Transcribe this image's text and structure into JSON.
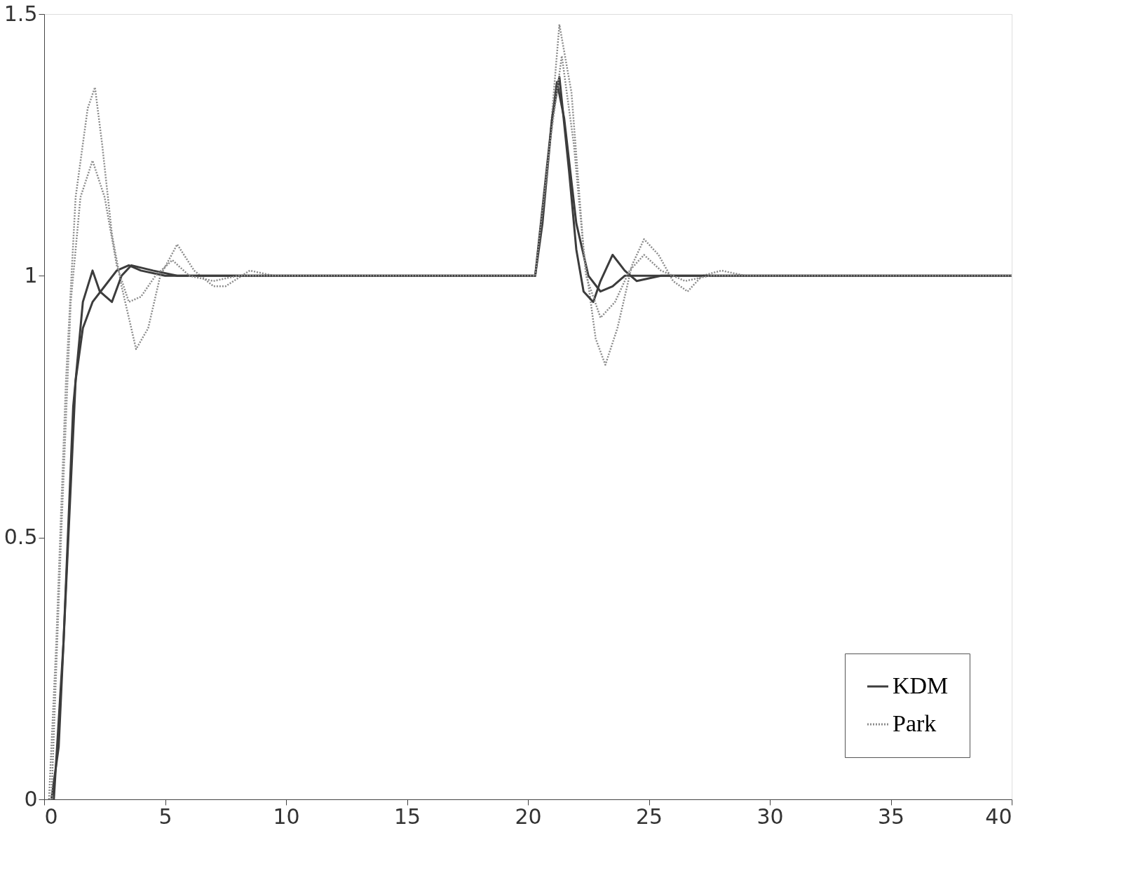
{
  "chart_data": {
    "type": "line",
    "xlim": [
      0,
      40
    ],
    "ylim": [
      0,
      1.5
    ],
    "xticks": [
      0,
      5,
      10,
      15,
      20,
      25,
      30,
      35,
      40
    ],
    "yticks": [
      0,
      0.5,
      1,
      1.5
    ],
    "grid": false,
    "legend": "bottom right",
    "marker": "none",
    "series": [
      {
        "name": "KDM",
        "color": "#3c3c3c",
        "line_style": "solid",
        "x": [
          0.3,
          0.6,
          1,
          1.3,
          1.6,
          2,
          2.5,
          3,
          3.5,
          4,
          5,
          20.3,
          20.6,
          21,
          21.2,
          21.5,
          22,
          22.5,
          23,
          23.5,
          24,
          25,
          40
        ],
        "values": [
          0,
          0.1,
          0.5,
          0.8,
          0.9,
          0.95,
          0.98,
          1.01,
          1.02,
          1.01,
          1.0,
          1.0,
          1.1,
          1.3,
          1.37,
          1.3,
          1.1,
          1.0,
          0.97,
          0.98,
          1.0,
          1.0,
          1.0
        ]
      },
      {
        "name": "Park",
        "color": "#8c8c8c",
        "line_style": "dotted",
        "x": [
          0.2,
          0.5,
          0.9,
          1.3,
          1.8,
          2.1,
          2.4,
          2.8,
          3.2,
          3.8,
          4.3,
          4.8,
          5.5,
          6.2,
          7,
          7.5,
          8.5,
          9.5,
          20.3,
          20.8,
          21.3,
          21.8,
          22.3,
          22.8,
          23.2,
          23.7,
          24.3,
          24.8,
          25.4,
          26,
          26.6,
          27.2,
          28,
          29,
          40
        ],
        "values": [
          0,
          0.3,
          0.8,
          1.15,
          1.32,
          1.36,
          1.25,
          1.08,
          0.98,
          0.86,
          0.9,
          1.0,
          1.06,
          1.01,
          0.98,
          0.98,
          1.01,
          1.0,
          1.0,
          1.2,
          1.48,
          1.35,
          1.05,
          0.88,
          0.83,
          0.9,
          1.02,
          1.07,
          1.04,
          0.99,
          0.97,
          1.0,
          1.01,
          1.0,
          1.0
        ]
      },
      {
        "color": "#3c3c3c",
        "line_style": "solid",
        "x": [
          0.4,
          0.8,
          1.2,
          1.6,
          2,
          2.3,
          2.8,
          3.2,
          3.6,
          4.5,
          5.5,
          20.3,
          21,
          21.3,
          21.7,
          22,
          22.3,
          22.7,
          23,
          23.5,
          24,
          24.5,
          25.5,
          40
        ],
        "values": [
          0,
          0.3,
          0.75,
          0.95,
          1.01,
          0.97,
          0.95,
          1.0,
          1.02,
          1.01,
          1.0,
          1.0,
          1.3,
          1.38,
          1.2,
          1.05,
          0.97,
          0.95,
          0.99,
          1.04,
          1.01,
          0.99,
          1.0,
          1.0
        ]
      },
      {
        "color": "#8c8c8c",
        "line_style": "dotted",
        "x": [
          0.3,
          0.7,
          1.1,
          1.5,
          2,
          2.5,
          3,
          3.5,
          4,
          4.6,
          5.3,
          6,
          7,
          8,
          20.3,
          20.9,
          21.4,
          21.9,
          22.4,
          23,
          23.6,
          24.2,
          24.8,
          25.5,
          26.5,
          27.5,
          40
        ],
        "values": [
          0,
          0.5,
          0.95,
          1.15,
          1.22,
          1.15,
          1.02,
          0.95,
          0.96,
          1.0,
          1.03,
          1.0,
          0.99,
          1.0,
          1.0,
          1.25,
          1.42,
          1.25,
          1.0,
          0.92,
          0.95,
          1.01,
          1.04,
          1.01,
          0.99,
          1.0,
          1.0
        ]
      }
    ]
  }
}
